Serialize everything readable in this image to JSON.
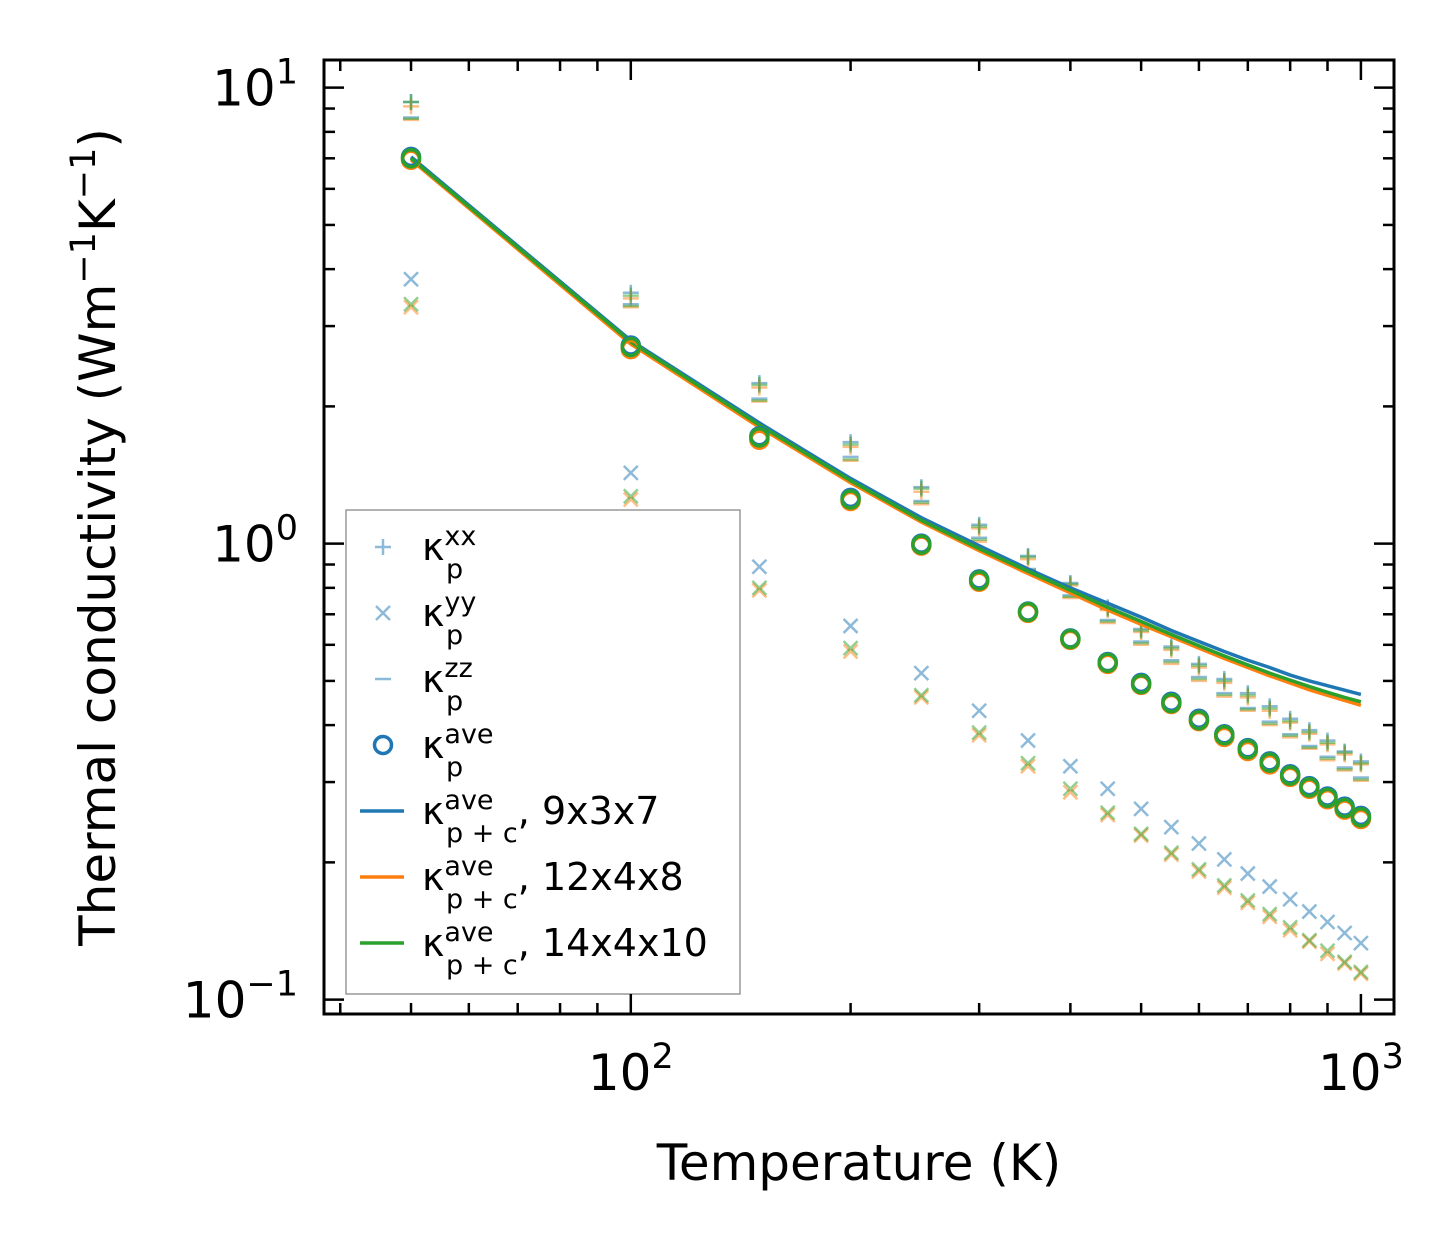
{
  "chart_data": {
    "type": "scatter",
    "xscale": "log",
    "yscale": "log",
    "xlim": [
      38,
      1110
    ],
    "ylim": [
      0.093,
      11.5
    ],
    "xlabel": "Temperature (K)",
    "ylabel_text": "Thermal conductivity (Wm",
    "ylabel_sup1": "−1",
    "ylabel_mid": "K",
    "ylabel_sup2": "−1",
    "ylabel_end": ")",
    "x_ticks": [
      {
        "value": 100,
        "base": "10",
        "exp": "2"
      },
      {
        "value": 1000,
        "base": "10",
        "exp": "3"
      }
    ],
    "y_ticks": [
      {
        "value": 0.1,
        "base": "10",
        "exp": "−1"
      },
      {
        "value": 1,
        "base": "10",
        "exp": "0"
      },
      {
        "value": 10,
        "base": "10",
        "exp": "1"
      }
    ],
    "x": [
      50,
      100,
      150,
      200,
      250,
      300,
      350,
      400,
      450,
      500,
      550,
      600,
      650,
      700,
      750,
      800,
      850,
      900,
      950,
      1000
    ],
    "colors": {
      "blue": "#1f77b4",
      "orange": "#ff7f0e",
      "green": "#2ca02c"
    },
    "supercells": [
      "9x3x7",
      "12x4x8",
      "14x4x10"
    ],
    "kappa_p_xx": [
      [
        9.3,
        3.55,
        2.25,
        1.67,
        1.33,
        1.1,
        0.94,
        0.82,
        0.725,
        0.65,
        0.595,
        0.545,
        0.505,
        0.47,
        0.44,
        0.413,
        0.39,
        0.37,
        0.35,
        0.333
      ],
      [
        9.1,
        3.45,
        2.2,
        1.63,
        1.3,
        1.08,
        0.925,
        0.81,
        0.715,
        0.64,
        0.585,
        0.535,
        0.495,
        0.46,
        0.43,
        0.405,
        0.383,
        0.363,
        0.345,
        0.328
      ],
      [
        9.3,
        3.5,
        2.23,
        1.65,
        1.32,
        1.09,
        0.935,
        0.815,
        0.72,
        0.645,
        0.59,
        0.54,
        0.5,
        0.465,
        0.435,
        0.408,
        0.386,
        0.366,
        0.348,
        0.33
      ]
    ],
    "kappa_p_yy": [
      [
        3.8,
        1.43,
        0.89,
        0.66,
        0.52,
        0.43,
        0.37,
        0.325,
        0.29,
        0.262,
        0.239,
        0.22,
        0.203,
        0.189,
        0.177,
        0.166,
        0.156,
        0.148,
        0.14,
        0.133
      ],
      [
        3.3,
        1.25,
        0.79,
        0.58,
        0.46,
        0.38,
        0.325,
        0.285,
        0.254,
        0.229,
        0.208,
        0.191,
        0.176,
        0.163,
        0.152,
        0.142,
        0.134,
        0.126,
        0.12,
        0.114
      ],
      [
        3.35,
        1.27,
        0.8,
        0.59,
        0.465,
        0.385,
        0.33,
        0.29,
        0.257,
        0.231,
        0.21,
        0.193,
        0.178,
        0.165,
        0.154,
        0.144,
        0.135,
        0.128,
        0.121,
        0.115
      ]
    ],
    "kappa_p_zz": [
      [
        8.6,
        3.35,
        2.08,
        1.55,
        1.24,
        1.03,
        0.88,
        0.77,
        0.68,
        0.61,
        0.555,
        0.51,
        0.47,
        0.436,
        0.407,
        0.382,
        0.36,
        0.341,
        0.323,
        0.307
      ],
      [
        8.5,
        3.3,
        2.05,
        1.52,
        1.22,
        1.01,
        0.87,
        0.76,
        0.67,
        0.6,
        0.545,
        0.5,
        0.462,
        0.43,
        0.4,
        0.376,
        0.355,
        0.335,
        0.318,
        0.302
      ],
      [
        8.55,
        3.32,
        2.06,
        1.53,
        1.23,
        1.02,
        0.875,
        0.765,
        0.675,
        0.605,
        0.55,
        0.505,
        0.466,
        0.433,
        0.403,
        0.379,
        0.357,
        0.338,
        0.32,
        0.304
      ]
    ],
    "kappa_p_ave": [
      [
        7.05,
        2.72,
        1.72,
        1.26,
        1.0,
        0.835,
        0.71,
        0.62,
        0.55,
        0.495,
        0.45,
        0.413,
        0.382,
        0.356,
        0.333,
        0.312,
        0.294,
        0.279,
        0.265,
        0.253
      ],
      [
        6.95,
        2.67,
        1.69,
        1.24,
        0.99,
        0.825,
        0.705,
        0.615,
        0.545,
        0.49,
        0.445,
        0.408,
        0.377,
        0.351,
        0.328,
        0.308,
        0.29,
        0.275,
        0.261,
        0.249
      ],
      [
        7.0,
        2.7,
        1.71,
        1.25,
        0.995,
        0.83,
        0.708,
        0.618,
        0.548,
        0.492,
        0.447,
        0.41,
        0.38,
        0.354,
        0.331,
        0.31,
        0.292,
        0.277,
        0.263,
        0.251
      ]
    ],
    "kappa_pc_ave": [
      [
        7.05,
        2.79,
        1.84,
        1.39,
        1.14,
        0.99,
        0.88,
        0.8,
        0.74,
        0.69,
        0.645,
        0.61,
        0.58,
        0.555,
        0.535,
        0.515,
        0.5,
        0.488,
        0.477,
        0.467
      ],
      [
        6.95,
        2.74,
        1.8,
        1.36,
        1.115,
        0.965,
        0.86,
        0.78,
        0.715,
        0.665,
        0.625,
        0.59,
        0.56,
        0.535,
        0.513,
        0.495,
        0.478,
        0.465,
        0.453,
        0.442
      ],
      [
        7.0,
        2.77,
        1.82,
        1.375,
        1.125,
        0.975,
        0.87,
        0.79,
        0.725,
        0.675,
        0.632,
        0.597,
        0.567,
        0.542,
        0.52,
        0.502,
        0.486,
        0.472,
        0.46,
        0.45
      ]
    ],
    "legend": {
      "position": "lower-left",
      "entries": [
        {
          "symbol": "κ",
          "sub": "p",
          "sup": "xx",
          "suffix": "",
          "marker": "plus"
        },
        {
          "symbol": "κ",
          "sub": "p",
          "sup": "yy",
          "suffix": "",
          "marker": "x"
        },
        {
          "symbol": "κ",
          "sub": "p",
          "sup": "zz",
          "suffix": "",
          "marker": "dash"
        },
        {
          "symbol": "κ",
          "sub": "p",
          "sup": "ave",
          "suffix": "",
          "marker": "circle"
        },
        {
          "symbol": "κ",
          "sub": "p + c",
          "sup": "ave",
          "suffix": ", 9x3x7",
          "marker": "line-blue"
        },
        {
          "symbol": "κ",
          "sub": "p + c",
          "sup": "ave",
          "suffix": ", 12x4x8",
          "marker": "line-orange"
        },
        {
          "symbol": "κ",
          "sub": "p + c",
          "sup": "ave",
          "suffix": ", 14x4x10",
          "marker": "line-green"
        }
      ]
    }
  }
}
